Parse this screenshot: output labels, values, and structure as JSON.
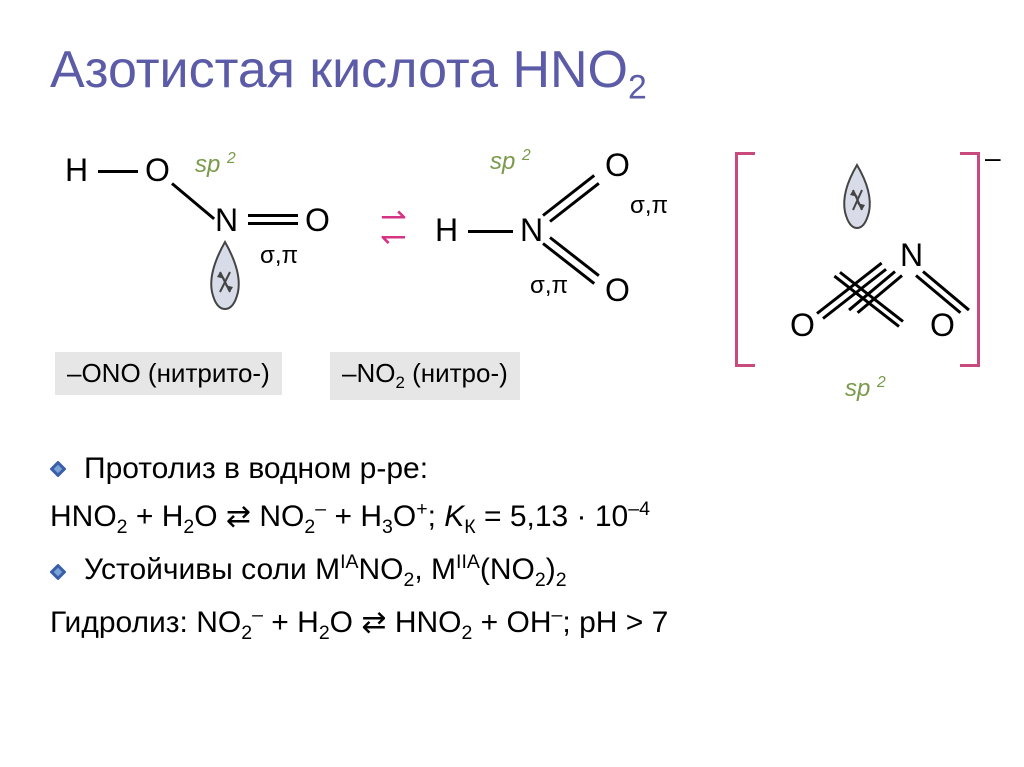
{
  "title_color": "#5b5ba8",
  "title_html": "Азотистая кислота HNO<sub>2</sub>",
  "sp_color": "#7a9a4a",
  "arrow_color": "#d63384",
  "bracket_color": "#c94a7c",
  "diamond_outer": "#3a5fa8",
  "diamond_inner": "#7aa3d8",
  "label_bg": "#e6e6e6",
  "struct1": {
    "atoms": {
      "H": "H",
      "O1": "O",
      "N": "N",
      "O2": "O"
    },
    "sp": "sp",
    "sp_sup": "2",
    "sigma_pi": "σ,π",
    "label": "–ONO (нитрито-)"
  },
  "struct2": {
    "atoms": {
      "H": "H",
      "N": "N",
      "O1": "O",
      "O2": "O"
    },
    "sp": "sp",
    "sp_sup": "2",
    "sigma_pi1": "σ,π",
    "sigma_pi2": "σ,π",
    "label_html": "–NO<sub>2</sub> (нитро-)"
  },
  "struct3": {
    "atoms": {
      "N": "N",
      "O1": "O",
      "O2": "O"
    },
    "sp": "sp",
    "sp_sup": "2",
    "charge": "–"
  },
  "bullets": [
    "Протолиз в водном р-ре:",
    "Устойчивы соли M<sup>IA</sup>NO<sub>2</sub>, M<sup>IIA</sup>(NO<sub>2</sub>)<sub>2</sub>"
  ],
  "eq1_html": "HNO<sub>2</sub> + H<sub>2</sub>O ⇄ NO<sub>2</sub><sup>–</sup> + H<sub>3</sub>O<sup>+</sup>; <span class=\"italic\">K</span><sub>К</sub> = 5,13 · 10<sup>–4</sup>",
  "eq2_html": "Гидролиз: NO<sub>2</sub><sup>–</sup> + H<sub>2</sub>O ⇄ HNO<sub>2</sub> + OH<sup>–</sup>; pH > 7"
}
